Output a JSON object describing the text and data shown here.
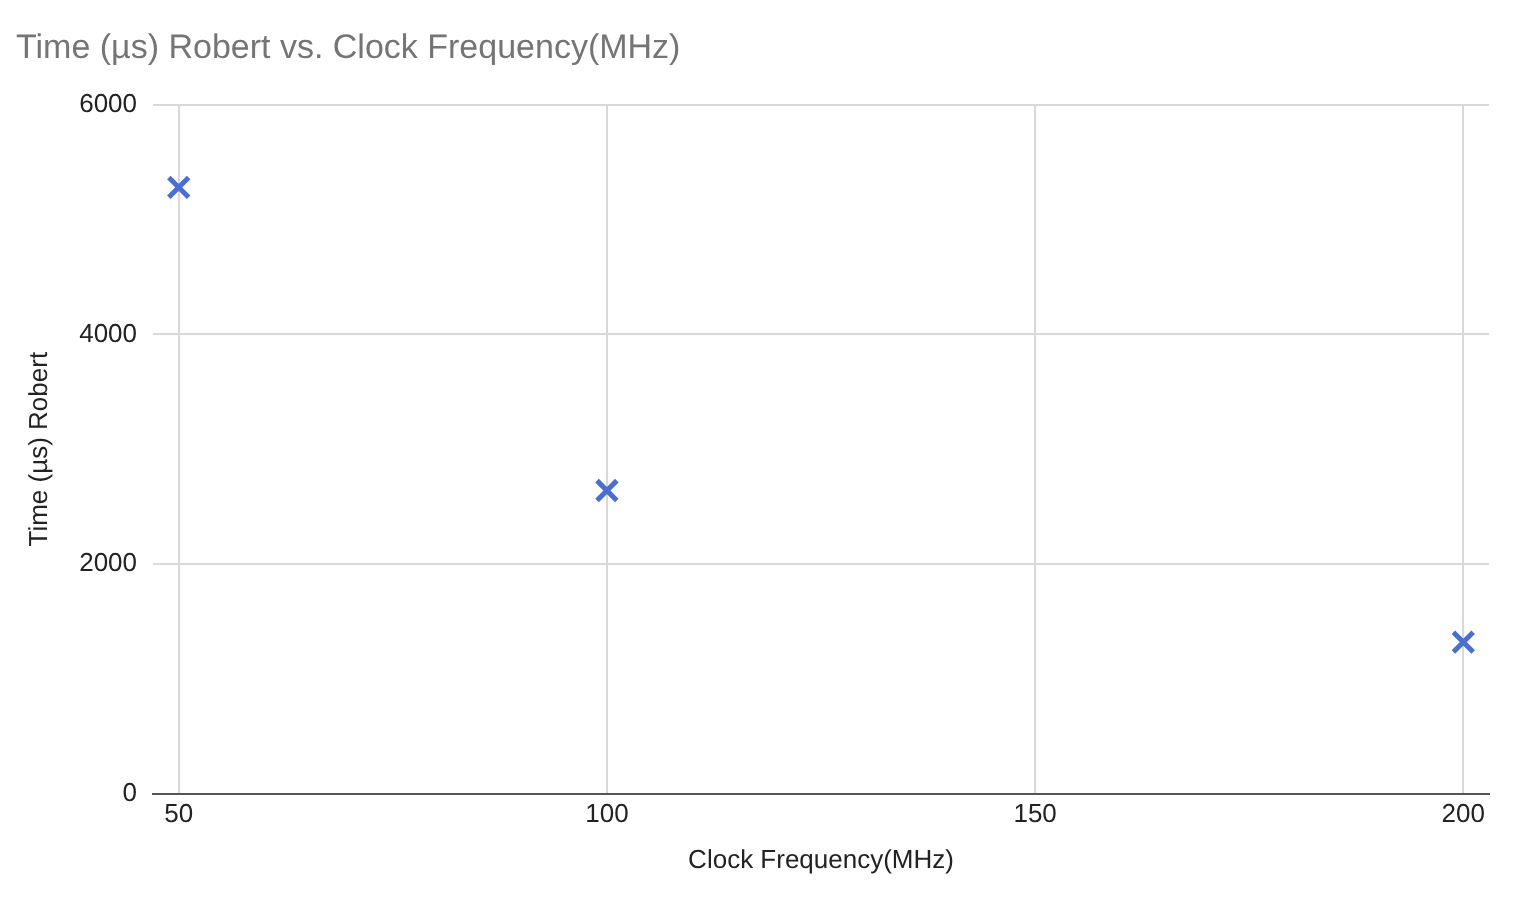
{
  "chart_data": {
    "type": "scatter",
    "title": "Time (µs) Robert vs. Clock Frequency(MHz)",
    "xlabel": "Clock Frequency(MHz)",
    "ylabel": "Time (µs) Robert",
    "x": [
      50,
      100,
      200
    ],
    "series": [
      {
        "color": "#4a6fd0",
        "values": [
          5280,
          2640,
          1320
        ]
      }
    ],
    "xlim": [
      47,
      203
    ],
    "xticks": [
      50,
      100,
      150,
      200
    ],
    "ylim": [
      0,
      6000
    ],
    "yticks": [
      0,
      2000,
      4000,
      6000
    ],
    "grid": true,
    "legend": false,
    "marker": "cross"
  }
}
